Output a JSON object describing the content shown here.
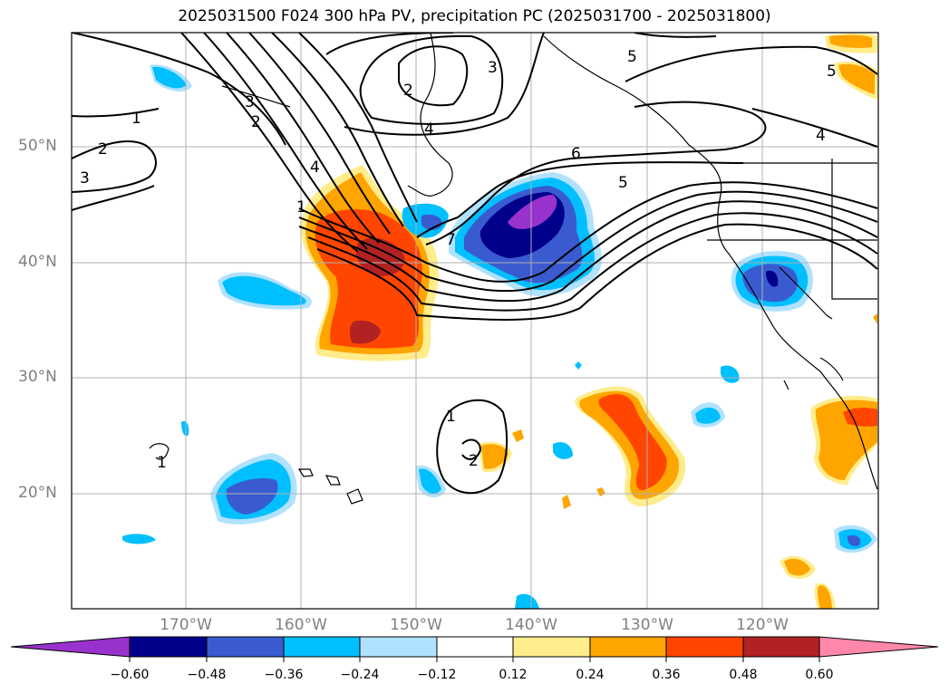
{
  "title": "2025031500 F024 300 hPa PV, precipitation PC (2025031700 - 2025031800)",
  "map": {
    "projection": "PlateCarree",
    "lon_range": [
      -180,
      -110
    ],
    "lat_range": [
      10,
      60
    ],
    "lat_labels": [
      "50°N",
      "40°N",
      "30°N",
      "20°N"
    ],
    "lon_labels": [
      "170°W",
      "160°W",
      "150°W",
      "140°W",
      "130°W",
      "120°W"
    ],
    "gridlines": true,
    "coastlines": true
  },
  "pv_contours": {
    "variable": "300 hPa PV",
    "line_color": "#000000",
    "labels": [
      "1",
      "2",
      "3",
      "2",
      "3",
      "4",
      "1",
      "2",
      "3",
      "4",
      "6",
      "5",
      "7",
      "5",
      "4",
      "5",
      "1",
      "1",
      "2"
    ]
  },
  "precip_pc": {
    "variable": "precipitation PC",
    "fills": [
      "positive",
      "negative"
    ]
  },
  "colorbar": {
    "extend": "both",
    "tick_labels": [
      "−0.60",
      "−0.48",
      "−0.36",
      "−0.24",
      "−0.12",
      "0.12",
      "0.24",
      "0.36",
      "0.48",
      "0.60"
    ],
    "colors": [
      "#9932cc",
      "#00008b",
      "#3a5bd0",
      "#00bfff",
      "#b0e2ff",
      "#ffffff",
      "#ffec8b",
      "#ffa500",
      "#ff4500",
      "#b22222",
      "#ff88aa"
    ]
  }
}
